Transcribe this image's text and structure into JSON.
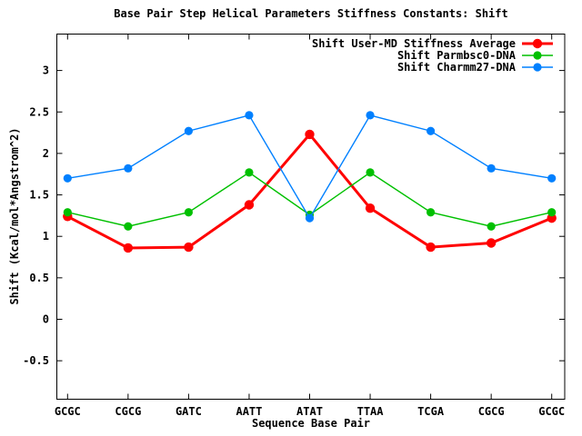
{
  "chart_data": {
    "type": "line",
    "title": "Base Pair Step Helical Parameters Stiffness Constants: Shift",
    "xlabel": "Sequence Base Pair",
    "ylabel": "Shift (Kcal/mol*Angstrom^2)",
    "categories": [
      "GCGC",
      "CGCG",
      "GATC",
      "AATT",
      "ATAT",
      "TTAA",
      "TCGA",
      "CGCG",
      "GCGC"
    ],
    "series": [
      {
        "name": "Shift User-MD Stiffness Average",
        "color": "#ff0000",
        "values": [
          1.24,
          0.86,
          0.87,
          1.38,
          2.23,
          1.34,
          0.87,
          0.92,
          1.22
        ]
      },
      {
        "name": "Shift Parmbsc0-DNA",
        "color": "#00c000",
        "values": [
          1.29,
          1.12,
          1.29,
          1.77,
          1.26,
          1.77,
          1.29,
          1.12,
          1.29
        ]
      },
      {
        "name": "Shift Charmm27-DNA",
        "color": "#0080ff",
        "values": [
          1.7,
          1.82,
          2.27,
          2.46,
          1.22,
          2.46,
          2.27,
          1.82,
          1.7
        ]
      }
    ],
    "yticks": [
      -0.5,
      0,
      0.5,
      1,
      1.5,
      2,
      2.5,
      3
    ],
    "ylim": [
      -1,
      3.5
    ],
    "grid": false,
    "legend_position": "top-right-inside",
    "marker": "filled-circle",
    "axis_color": "#000000",
    "background_color": "#ffffff"
  }
}
